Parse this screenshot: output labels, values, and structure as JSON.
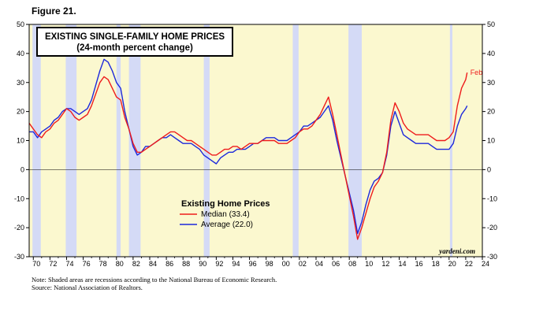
{
  "figure_label": "Figure 21.",
  "footnotes": {
    "note": "Note: Shaded areas are recessions according to the National Bureau of Economic Research.",
    "source": "Source: National Association of Realtors."
  },
  "chart_data": {
    "type": "line",
    "title": "EXISTING SINGLE-FAMILY HOME PRICES",
    "subtitle": "(24-month percent change)",
    "legend_title": "Existing Home Prices",
    "legend_placement": "center-left",
    "watermark": "yardeni.com",
    "xlim": [
      1969.5,
      2024
    ],
    "ylim": [
      -30,
      50
    ],
    "y_ticks": [
      -30,
      -20,
      -10,
      0,
      10,
      20,
      30,
      40,
      50
    ],
    "x_tick_labels": [
      "70",
      "72",
      "74",
      "76",
      "78",
      "80",
      "82",
      "84",
      "86",
      "88",
      "90",
      "92",
      "94",
      "96",
      "98",
      "00",
      "02",
      "04",
      "06",
      "08",
      "10",
      "12",
      "14",
      "16",
      "18",
      "20",
      "22",
      "24"
    ],
    "x_tick_years": [
      1970,
      1972,
      1974,
      1976,
      1978,
      1980,
      1982,
      1984,
      1986,
      1988,
      1990,
      1992,
      1994,
      1996,
      1998,
      2000,
      2002,
      2004,
      2006,
      2008,
      2010,
      2012,
      2014,
      2016,
      2018,
      2020,
      2022,
      2024
    ],
    "zero_line": true,
    "recessions": [
      [
        1969.9,
        1970.9
      ],
      [
        1973.9,
        1975.2
      ],
      [
        1980.0,
        1980.5
      ],
      [
        1981.5,
        1982.9
      ],
      [
        1990.5,
        1991.2
      ],
      [
        2001.2,
        2001.9
      ],
      [
        2007.9,
        2009.5
      ],
      [
        2020.1,
        2020.4
      ]
    ],
    "colors": {
      "plot_bg": "#fbf8cf",
      "recession": "#d4daf6",
      "median": "#ee1c1c",
      "average": "#1c28dc"
    },
    "end_annotation": "Feb",
    "series": [
      {
        "name": "Median (33.4)",
        "color": "#ee1c1c",
        "points": [
          [
            1969.5,
            16
          ],
          [
            1970,
            14
          ],
          [
            1970.5,
            12
          ],
          [
            1971,
            11
          ],
          [
            1971.5,
            13
          ],
          [
            1972,
            14
          ],
          [
            1972.5,
            16
          ],
          [
            1973,
            17
          ],
          [
            1973.5,
            19
          ],
          [
            1974,
            21
          ],
          [
            1974.5,
            20
          ],
          [
            1975,
            18
          ],
          [
            1975.5,
            17
          ],
          [
            1976,
            18
          ],
          [
            1976.5,
            19
          ],
          [
            1977,
            22
          ],
          [
            1977.5,
            26
          ],
          [
            1978,
            30
          ],
          [
            1978.5,
            32
          ],
          [
            1979,
            31
          ],
          [
            1979.5,
            28
          ],
          [
            1980,
            25
          ],
          [
            1980.5,
            24
          ],
          [
            1981,
            18
          ],
          [
            1981.5,
            14
          ],
          [
            1982,
            9
          ],
          [
            1982.5,
            6
          ],
          [
            1983,
            6
          ],
          [
            1983.5,
            7
          ],
          [
            1984,
            8
          ],
          [
            1984.5,
            9
          ],
          [
            1985,
            10
          ],
          [
            1985.5,
            11
          ],
          [
            1986,
            12
          ],
          [
            1986.5,
            13
          ],
          [
            1987,
            13
          ],
          [
            1987.5,
            12
          ],
          [
            1988,
            11
          ],
          [
            1988.5,
            10
          ],
          [
            1989,
            10
          ],
          [
            1989.5,
            9
          ],
          [
            1990,
            8
          ],
          [
            1990.5,
            7
          ],
          [
            1991,
            6
          ],
          [
            1991.5,
            5
          ],
          [
            1992,
            5
          ],
          [
            1992.5,
            6
          ],
          [
            1993,
            7
          ],
          [
            1993.5,
            7
          ],
          [
            1994,
            8
          ],
          [
            1994.5,
            8
          ],
          [
            1995,
            7
          ],
          [
            1995.5,
            8
          ],
          [
            1996,
            9
          ],
          [
            1996.5,
            9
          ],
          [
            1997,
            9
          ],
          [
            1997.5,
            10
          ],
          [
            1998,
            10
          ],
          [
            1998.5,
            10
          ],
          [
            1999,
            10
          ],
          [
            1999.5,
            9
          ],
          [
            2000,
            9
          ],
          [
            2000.5,
            9
          ],
          [
            2001,
            10
          ],
          [
            2001.5,
            11
          ],
          [
            2002,
            13
          ],
          [
            2002.5,
            14
          ],
          [
            2003,
            14
          ],
          [
            2003.5,
            15
          ],
          [
            2004,
            17
          ],
          [
            2004.5,
            19
          ],
          [
            2005,
            22
          ],
          [
            2005.5,
            25
          ],
          [
            2006,
            19
          ],
          [
            2006.5,
            12
          ],
          [
            2007,
            5
          ],
          [
            2007.5,
            -2
          ],
          [
            2008,
            -9
          ],
          [
            2008.5,
            -16
          ],
          [
            2009,
            -24
          ],
          [
            2009.5,
            -20
          ],
          [
            2010,
            -15
          ],
          [
            2010.5,
            -10
          ],
          [
            2011,
            -6
          ],
          [
            2011.5,
            -4
          ],
          [
            2012,
            -1
          ],
          [
            2012.5,
            6
          ],
          [
            2013,
            17
          ],
          [
            2013.5,
            23
          ],
          [
            2014,
            20
          ],
          [
            2014.5,
            16
          ],
          [
            2015,
            14
          ],
          [
            2015.5,
            13
          ],
          [
            2016,
            12
          ],
          [
            2016.5,
            12
          ],
          [
            2017,
            12
          ],
          [
            2017.5,
            12
          ],
          [
            2018,
            11
          ],
          [
            2018.5,
            10
          ],
          [
            2019,
            10
          ],
          [
            2019.5,
            10
          ],
          [
            2020,
            11
          ],
          [
            2020.5,
            13
          ],
          [
            2021,
            22
          ],
          [
            2021.5,
            28
          ],
          [
            2022,
            31
          ],
          [
            2022.17,
            33.4
          ]
        ]
      },
      {
        "name": "Average (22.0)",
        "color": "#1c28dc",
        "points": [
          [
            1969.5,
            13
          ],
          [
            1970,
            13
          ],
          [
            1970.5,
            11
          ],
          [
            1971,
            13
          ],
          [
            1971.5,
            14
          ],
          [
            1972,
            15
          ],
          [
            1972.5,
            17
          ],
          [
            1973,
            18
          ],
          [
            1973.5,
            20
          ],
          [
            1974,
            21
          ],
          [
            1974.5,
            21
          ],
          [
            1975,
            20
          ],
          [
            1975.5,
            19
          ],
          [
            1976,
            20
          ],
          [
            1976.5,
            21
          ],
          [
            1977,
            24
          ],
          [
            1977.5,
            29
          ],
          [
            1978,
            34
          ],
          [
            1978.5,
            38
          ],
          [
            1979,
            37
          ],
          [
            1979.5,
            34
          ],
          [
            1980,
            30
          ],
          [
            1980.5,
            28
          ],
          [
            1981,
            20
          ],
          [
            1981.5,
            14
          ],
          [
            1982,
            8
          ],
          [
            1982.5,
            5
          ],
          [
            1983,
            6
          ],
          [
            1983.5,
            8
          ],
          [
            1984,
            8
          ],
          [
            1984.5,
            9
          ],
          [
            1985,
            10
          ],
          [
            1985.5,
            11
          ],
          [
            1986,
            11
          ],
          [
            1986.5,
            12
          ],
          [
            1987,
            11
          ],
          [
            1987.5,
            10
          ],
          [
            1988,
            9
          ],
          [
            1988.5,
            9
          ],
          [
            1989,
            9
          ],
          [
            1989.5,
            8
          ],
          [
            1990,
            7
          ],
          [
            1990.5,
            5
          ],
          [
            1991,
            4
          ],
          [
            1991.5,
            3
          ],
          [
            1992,
            2
          ],
          [
            1992.5,
            4
          ],
          [
            1993,
            5
          ],
          [
            1993.5,
            6
          ],
          [
            1994,
            6
          ],
          [
            1994.5,
            7
          ],
          [
            1995,
            7
          ],
          [
            1995.5,
            7
          ],
          [
            1996,
            8
          ],
          [
            1996.5,
            9
          ],
          [
            1997,
            9
          ],
          [
            1997.5,
            10
          ],
          [
            1998,
            11
          ],
          [
            1998.5,
            11
          ],
          [
            1999,
            11
          ],
          [
            1999.5,
            10
          ],
          [
            2000,
            10
          ],
          [
            2000.5,
            10
          ],
          [
            2001,
            11
          ],
          [
            2001.5,
            12
          ],
          [
            2002,
            13
          ],
          [
            2002.5,
            15
          ],
          [
            2003,
            15
          ],
          [
            2003.5,
            16
          ],
          [
            2004,
            17
          ],
          [
            2004.5,
            18
          ],
          [
            2005,
            20
          ],
          [
            2005.5,
            22
          ],
          [
            2006,
            17
          ],
          [
            2006.5,
            10
          ],
          [
            2007,
            4
          ],
          [
            2007.5,
            -2
          ],
          [
            2008,
            -8
          ],
          [
            2008.5,
            -14
          ],
          [
            2009,
            -22
          ],
          [
            2009.5,
            -18
          ],
          [
            2010,
            -12
          ],
          [
            2010.5,
            -7
          ],
          [
            2011,
            -4
          ],
          [
            2011.5,
            -3
          ],
          [
            2012,
            -1
          ],
          [
            2012.5,
            5
          ],
          [
            2013,
            15
          ],
          [
            2013.5,
            20
          ],
          [
            2014,
            16
          ],
          [
            2014.5,
            12
          ],
          [
            2015,
            11
          ],
          [
            2015.5,
            10
          ],
          [
            2016,
            9
          ],
          [
            2016.5,
            9
          ],
          [
            2017,
            9
          ],
          [
            2017.5,
            9
          ],
          [
            2018,
            8
          ],
          [
            2018.5,
            7
          ],
          [
            2019,
            7
          ],
          [
            2019.5,
            7
          ],
          [
            2020,
            7
          ],
          [
            2020.5,
            9
          ],
          [
            2021,
            15
          ],
          [
            2021.5,
            19
          ],
          [
            2022,
            21
          ],
          [
            2022.17,
            22
          ]
        ]
      }
    ]
  }
}
